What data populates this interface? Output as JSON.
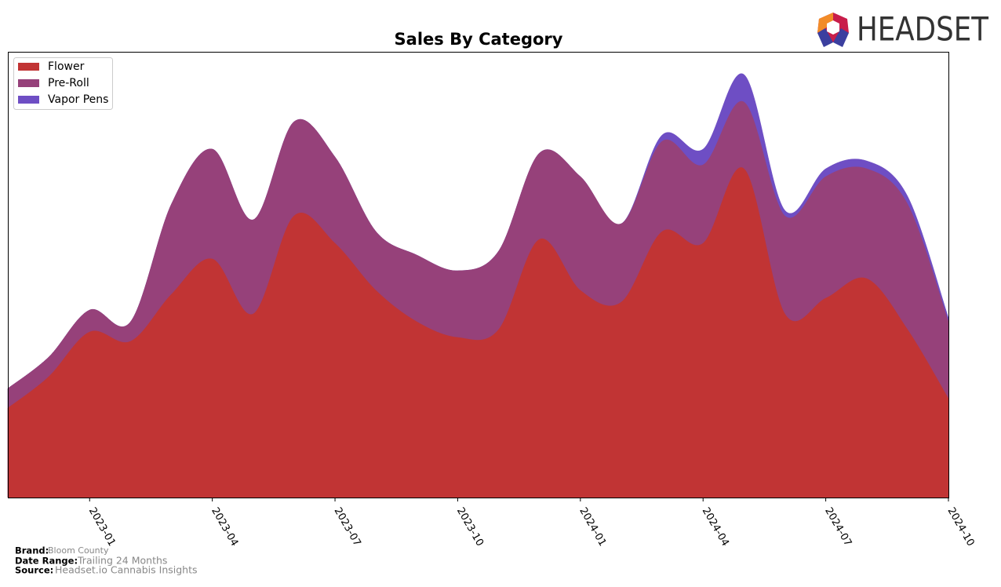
{
  "logo_text": "HEADSET",
  "chart_data": {
    "type": "stacked_area",
    "title": "Sales By Category",
    "x": [
      "2022-11",
      "2022-12",
      "2023-01",
      "2023-02",
      "2023-03",
      "2023-04",
      "2023-05",
      "2023-06",
      "2023-07",
      "2023-08",
      "2023-09",
      "2023-10",
      "2023-11",
      "2023-12",
      "2024-01",
      "2024-02",
      "2024-03",
      "2024-04",
      "2024-05",
      "2024-06",
      "2024-07",
      "2024-08",
      "2024-09",
      "2024-10"
    ],
    "xticks": [
      "2023-01",
      "2023-04",
      "2023-07",
      "2023-10",
      "2024-01",
      "2024-04",
      "2024-07",
      "2024-10"
    ],
    "ylim": [
      0,
      567
    ],
    "legend": "upper left",
    "series": [
      {
        "name": "Flower",
        "color": "#c13434",
        "values": [
          114,
          154,
          211,
          199,
          259,
          304,
          234,
          359,
          324,
          264,
          224,
          204,
          214,
          329,
          264,
          249,
          339,
          324,
          419,
          234,
          254,
          279,
          214,
          126
        ]
      },
      {
        "name": "Pre-Roll",
        "color": "#96417a",
        "values": [
          25,
          25,
          28,
          25,
          115,
          140,
          120,
          120,
          110,
          75,
          85,
          85,
          100,
          110,
          145,
          100,
          115,
          100,
          85,
          125,
          155,
          140,
          160,
          98
        ]
      },
      {
        "name": "Vapor Pens",
        "color": "#6e4ec4",
        "values": [
          0,
          0,
          0,
          0,
          0,
          0,
          0,
          0,
          0,
          0,
          0,
          0,
          0,
          0,
          0,
          0,
          8,
          20,
          35,
          7,
          10,
          10,
          10,
          5
        ]
      }
    ]
  },
  "footer": {
    "brand_label": "Brand:",
    "brand": "Bloom County",
    "range_label": "Date Range:",
    "range": "Trailing 24 Months",
    "source_label": "Source:",
    "source": "Headset.io Cannabis Insights"
  }
}
